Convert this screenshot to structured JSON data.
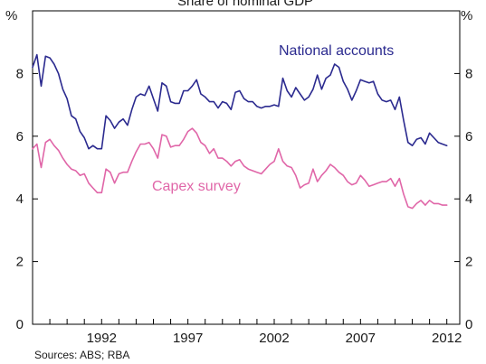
{
  "chart_data": {
    "type": "line",
    "title": "Share of nominal GDP",
    "unit_left": "%",
    "unit_right": "%",
    "source": "Sources: ABS; RBA",
    "ylim": [
      0,
      10
    ],
    "yticks": [
      0,
      2,
      4,
      6,
      8
    ],
    "xlim": [
      1988.0,
      2012.75
    ],
    "xticks": [
      {
        "label": "1992",
        "value": 1992.0
      },
      {
        "label": "1997",
        "value": 1997.0
      },
      {
        "label": "2002",
        "value": 2002.0
      },
      {
        "label": "2007",
        "value": 2007.0
      },
      {
        "label": "2012",
        "value": 2012.0
      }
    ],
    "grid": false,
    "series": [
      {
        "name": "National accounts",
        "color": "#2b2a8f",
        "x": [
          1988.0,
          1988.25,
          1988.5,
          1988.75,
          1989.0,
          1989.25,
          1989.5,
          1989.75,
          1990.0,
          1990.25,
          1990.5,
          1990.75,
          1991.0,
          1991.25,
          1991.5,
          1991.75,
          1992.0,
          1992.25,
          1992.5,
          1992.75,
          1993.0,
          1993.25,
          1993.5,
          1993.75,
          1994.0,
          1994.25,
          1994.5,
          1994.75,
          1995.0,
          1995.25,
          1995.5,
          1995.75,
          1996.0,
          1996.25,
          1996.5,
          1996.75,
          1997.0,
          1997.25,
          1997.5,
          1997.75,
          1998.0,
          1998.25,
          1998.5,
          1998.75,
          1999.0,
          1999.25,
          1999.5,
          1999.75,
          2000.0,
          2000.25,
          2000.5,
          2000.75,
          2001.0,
          2001.25,
          2001.5,
          2001.75,
          2002.0,
          2002.25,
          2002.5,
          2002.75,
          2003.0,
          2003.25,
          2003.5,
          2003.75,
          2004.0,
          2004.25,
          2004.5,
          2004.75,
          2005.0,
          2005.25,
          2005.5,
          2005.75,
          2006.0,
          2006.25,
          2006.5,
          2006.75,
          2007.0,
          2007.25,
          2007.5,
          2007.75,
          2008.0,
          2008.25,
          2008.5,
          2008.75,
          2009.0,
          2009.25,
          2009.5,
          2009.75,
          2010.0,
          2010.25,
          2010.5,
          2010.75,
          2011.0,
          2011.25,
          2011.5,
          2011.75,
          2012.0
        ],
        "values": [
          8.2,
          8.6,
          7.6,
          8.55,
          8.5,
          8.3,
          8.0,
          7.5,
          7.2,
          6.65,
          6.55,
          6.15,
          5.95,
          5.6,
          5.7,
          5.6,
          5.6,
          6.65,
          6.5,
          6.25,
          6.45,
          6.55,
          6.35,
          6.85,
          7.25,
          7.35,
          7.3,
          7.6,
          7.2,
          6.8,
          7.7,
          7.6,
          7.1,
          7.05,
          7.05,
          7.45,
          7.45,
          7.6,
          7.8,
          7.35,
          7.25,
          7.1,
          7.1,
          6.9,
          7.1,
          7.05,
          6.85,
          7.4,
          7.45,
          7.2,
          7.1,
          7.1,
          6.95,
          6.9,
          6.95,
          6.95,
          7.0,
          6.95,
          7.85,
          7.45,
          7.25,
          7.55,
          7.35,
          7.15,
          7.25,
          7.5,
          7.95,
          7.5,
          7.85,
          7.95,
          8.3,
          8.2,
          7.75,
          7.5,
          7.15,
          7.45,
          7.8,
          7.75,
          7.7,
          7.75,
          7.35,
          7.15,
          7.1,
          7.15,
          6.85,
          7.25,
          6.5,
          5.8,
          5.7,
          5.9,
          5.95,
          5.75,
          6.1,
          5.95,
          5.8,
          5.75,
          5.7
        ]
      },
      {
        "name": "Capex survey",
        "color": "#e066a8",
        "x": [
          1988.0,
          1988.25,
          1988.5,
          1988.75,
          1989.0,
          1989.25,
          1989.5,
          1989.75,
          1990.0,
          1990.25,
          1990.5,
          1990.75,
          1991.0,
          1991.25,
          1991.5,
          1991.75,
          1992.0,
          1992.25,
          1992.5,
          1992.75,
          1993.0,
          1993.25,
          1993.5,
          1993.75,
          1994.0,
          1994.25,
          1994.5,
          1994.75,
          1995.0,
          1995.25,
          1995.5,
          1995.75,
          1996.0,
          1996.25,
          1996.5,
          1996.75,
          1997.0,
          1997.25,
          1997.5,
          1997.75,
          1998.0,
          1998.25,
          1998.5,
          1998.75,
          1999.0,
          1999.25,
          1999.5,
          1999.75,
          2000.0,
          2000.25,
          2000.5,
          2000.75,
          2001.0,
          2001.25,
          2001.5,
          2001.75,
          2002.0,
          2002.25,
          2002.5,
          2002.75,
          2003.0,
          2003.25,
          2003.5,
          2003.75,
          2004.0,
          2004.25,
          2004.5,
          2004.75,
          2005.0,
          2005.25,
          2005.5,
          2005.75,
          2006.0,
          2006.25,
          2006.5,
          2006.75,
          2007.0,
          2007.25,
          2007.5,
          2007.75,
          2008.0,
          2008.25,
          2008.5,
          2008.75,
          2009.0,
          2009.25,
          2009.5,
          2009.75,
          2010.0,
          2010.25,
          2010.5,
          2010.75,
          2011.0,
          2011.25,
          2011.5,
          2011.75,
          2012.0
        ],
        "values": [
          5.6,
          5.75,
          5.0,
          5.8,
          5.9,
          5.7,
          5.55,
          5.3,
          5.1,
          4.95,
          4.9,
          4.75,
          4.8,
          4.5,
          4.35,
          4.2,
          4.2,
          4.95,
          4.85,
          4.5,
          4.8,
          4.85,
          4.85,
          5.2,
          5.5,
          5.75,
          5.75,
          5.8,
          5.6,
          5.3,
          6.05,
          6.0,
          5.65,
          5.7,
          5.7,
          5.9,
          6.15,
          6.25,
          6.1,
          5.8,
          5.7,
          5.45,
          5.6,
          5.3,
          5.3,
          5.2,
          5.05,
          5.2,
          5.25,
          5.05,
          4.95,
          4.9,
          4.85,
          4.8,
          4.95,
          5.1,
          5.2,
          5.6,
          5.2,
          5.05,
          5.0,
          4.75,
          4.35,
          4.45,
          4.5,
          4.95,
          4.55,
          4.75,
          4.9,
          5.1,
          5.0,
          4.85,
          4.75,
          4.55,
          4.45,
          4.5,
          4.75,
          4.6,
          4.4,
          4.45,
          4.5,
          4.55,
          4.55,
          4.65,
          4.4,
          4.65,
          4.15,
          3.75,
          3.7,
          3.85,
          3.95,
          3.8,
          3.95,
          3.85,
          3.85,
          3.8,
          3.8
        ]
      }
    ]
  }
}
